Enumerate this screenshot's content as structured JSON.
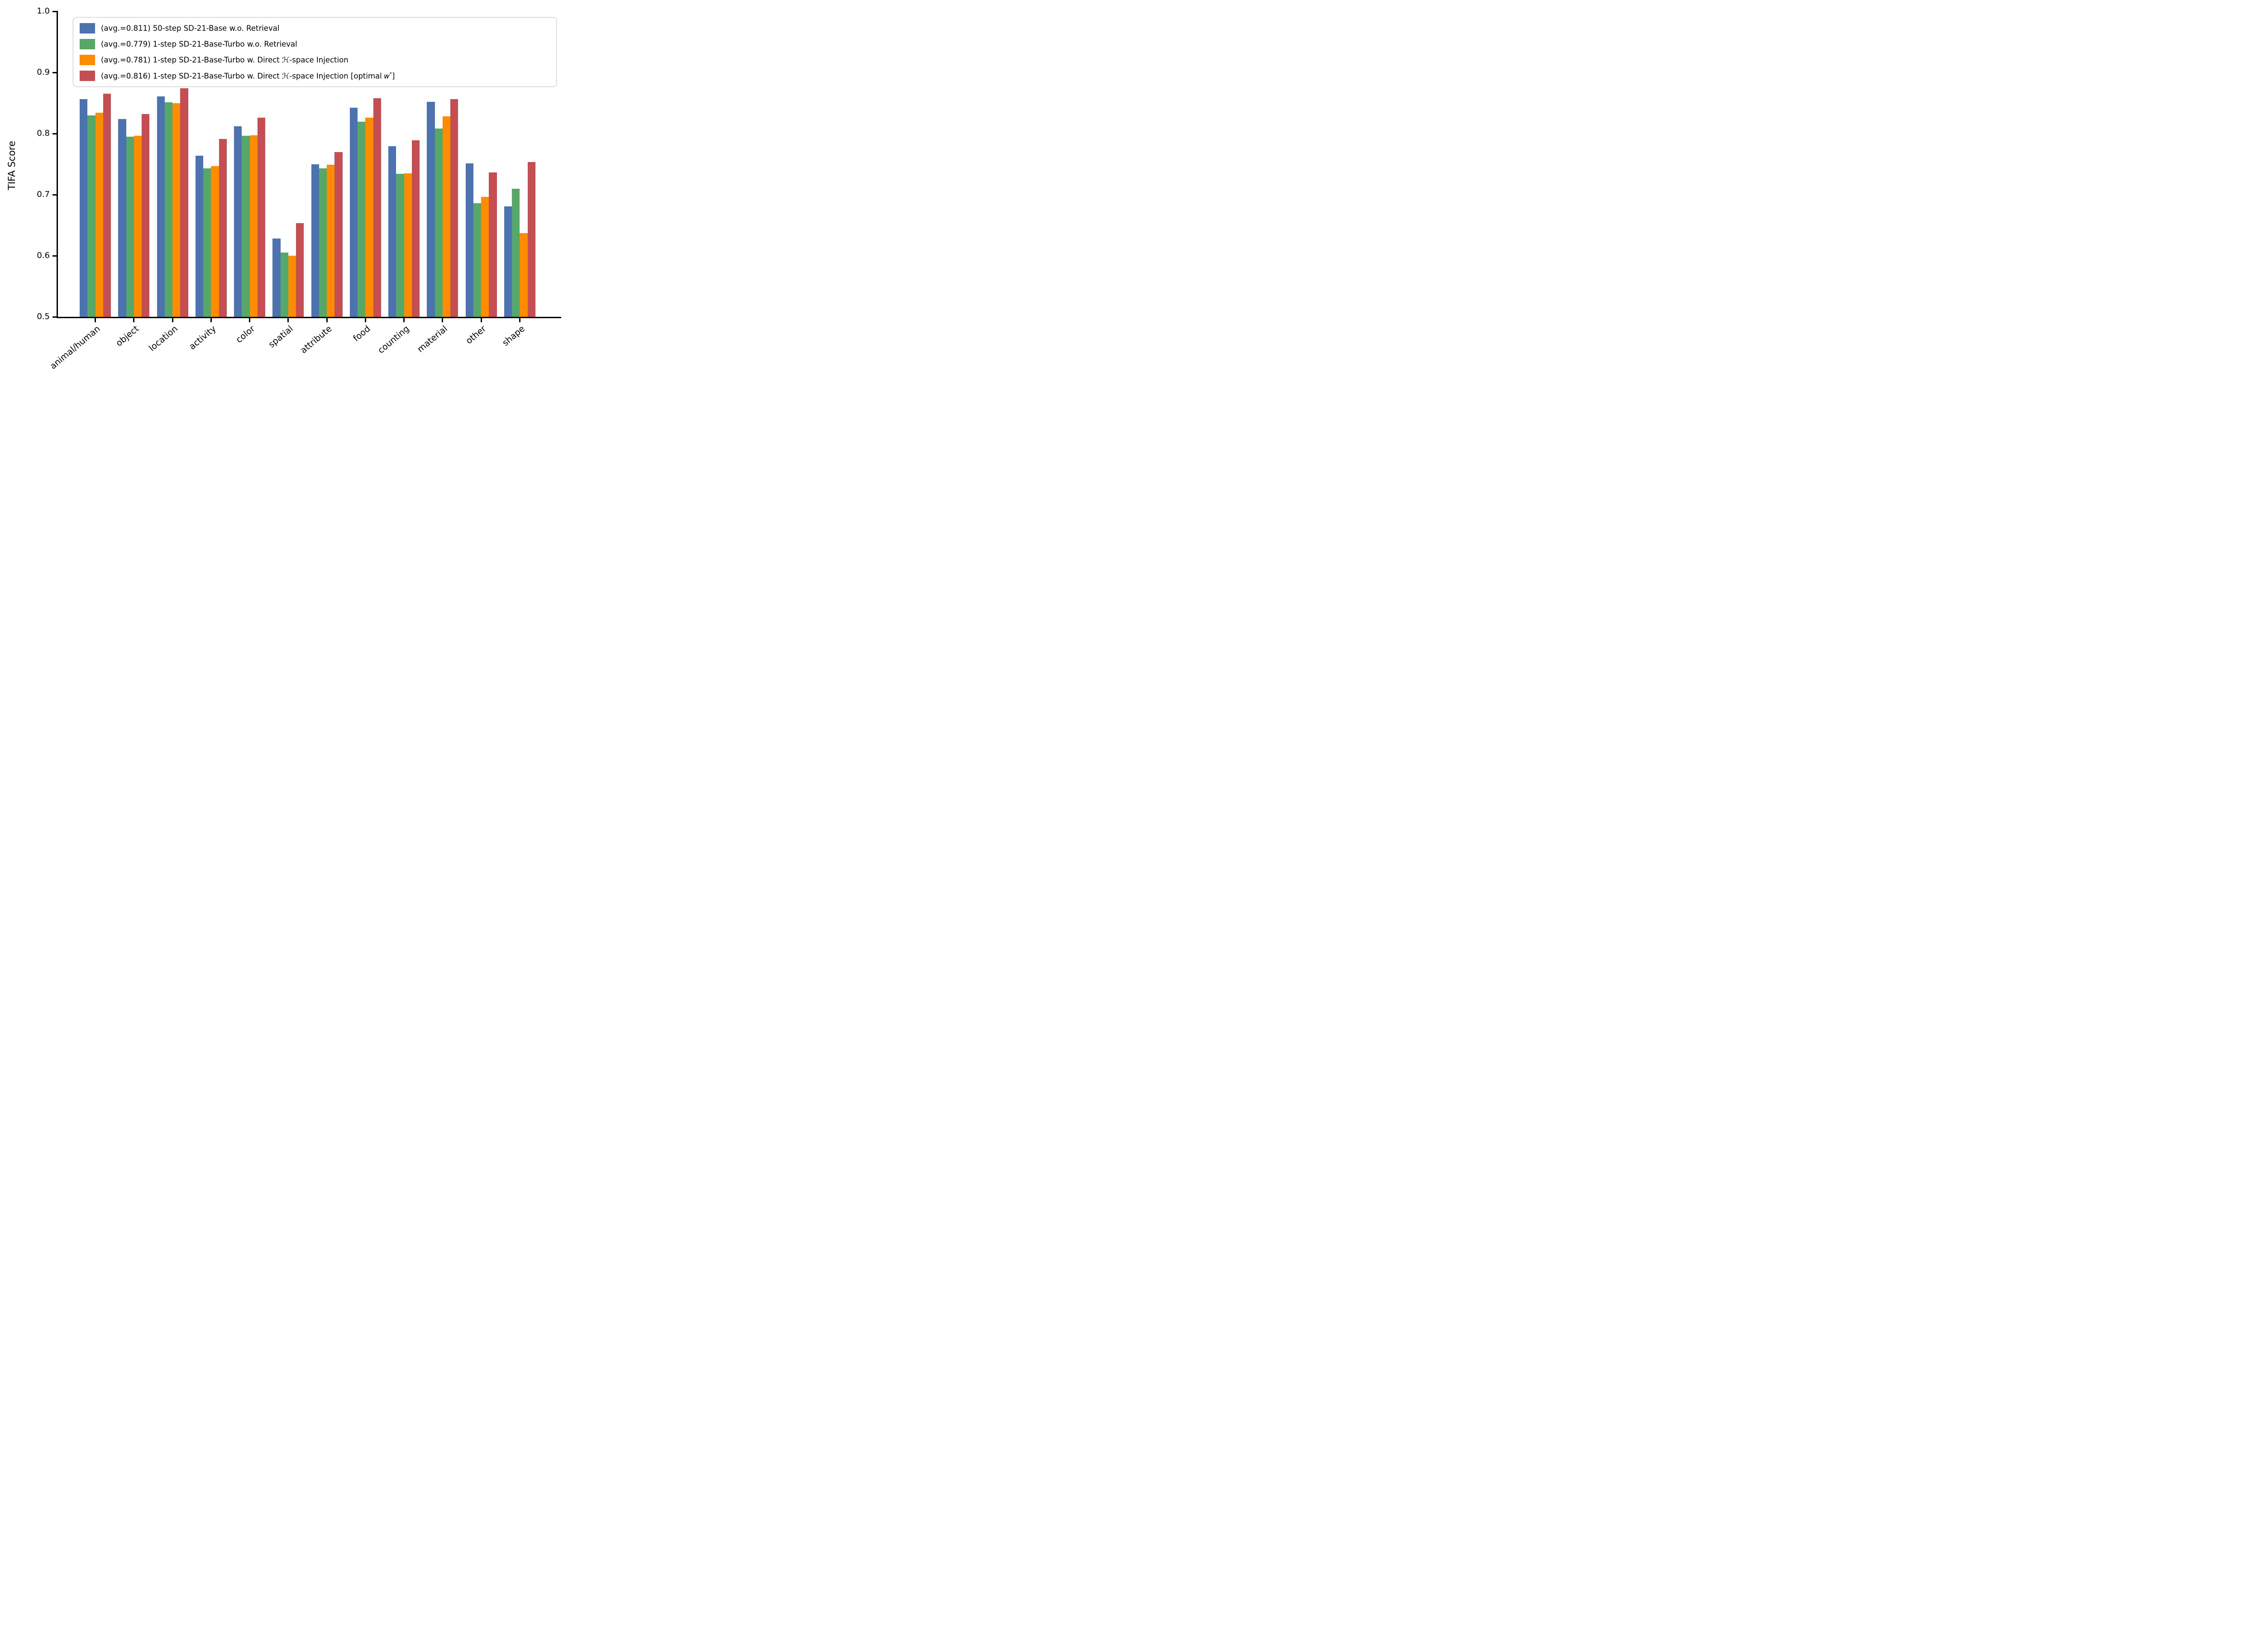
{
  "figure": {
    "ylabel": "TIFA Score"
  },
  "chart_data": {
    "type": "bar",
    "title": "",
    "xlabel": "",
    "ylabel": "TIFA Score",
    "ylim": [
      0.5,
      1.0
    ],
    "yticks": [
      0.5,
      0.6,
      0.7,
      0.8,
      0.9,
      1.0
    ],
    "grid": false,
    "legend_position": "upper left",
    "categories": [
      "animal/human",
      "object",
      "location",
      "activity",
      "color",
      "spatial",
      "attribute",
      "food",
      "counting",
      "material",
      "other",
      "shape"
    ],
    "series": [
      {
        "name": "(avg.=0.811) 50-step SD-21-Base w.o. Retrieval",
        "color": "#4C72B0",
        "values": [
          0.856,
          0.824,
          0.861,
          0.764,
          0.812,
          0.628,
          0.75,
          0.842,
          0.779,
          0.852,
          0.751,
          0.681
        ]
      },
      {
        "name": "(avg.=0.779) 1-step SD-21-Base-Turbo w.o. Retrieval",
        "color": "#55A868",
        "values": [
          0.83,
          0.795,
          0.851,
          0.743,
          0.796,
          0.605,
          0.743,
          0.819,
          0.734,
          0.808,
          0.686,
          0.71
        ]
      },
      {
        "name": "(avg.=0.781) 1-step SD-21-Base-Turbo w. Direct ℋ-space Injection",
        "color": "#FF8C00",
        "values": [
          0.834,
          0.796,
          0.85,
          0.747,
          0.797,
          0.6,
          0.749,
          0.826,
          0.735,
          0.828,
          0.696,
          0.637
        ]
      },
      {
        "name": "(avg.=0.816) 1-step SD-21-Base-Turbo w. Direct ℋ-space Injection [optimal 𝑤*]",
        "color": "#C44E52",
        "values": [
          0.865,
          0.832,
          0.874,
          0.791,
          0.826,
          0.653,
          0.77,
          0.858,
          0.789,
          0.856,
          0.736,
          0.753
        ]
      }
    ]
  }
}
